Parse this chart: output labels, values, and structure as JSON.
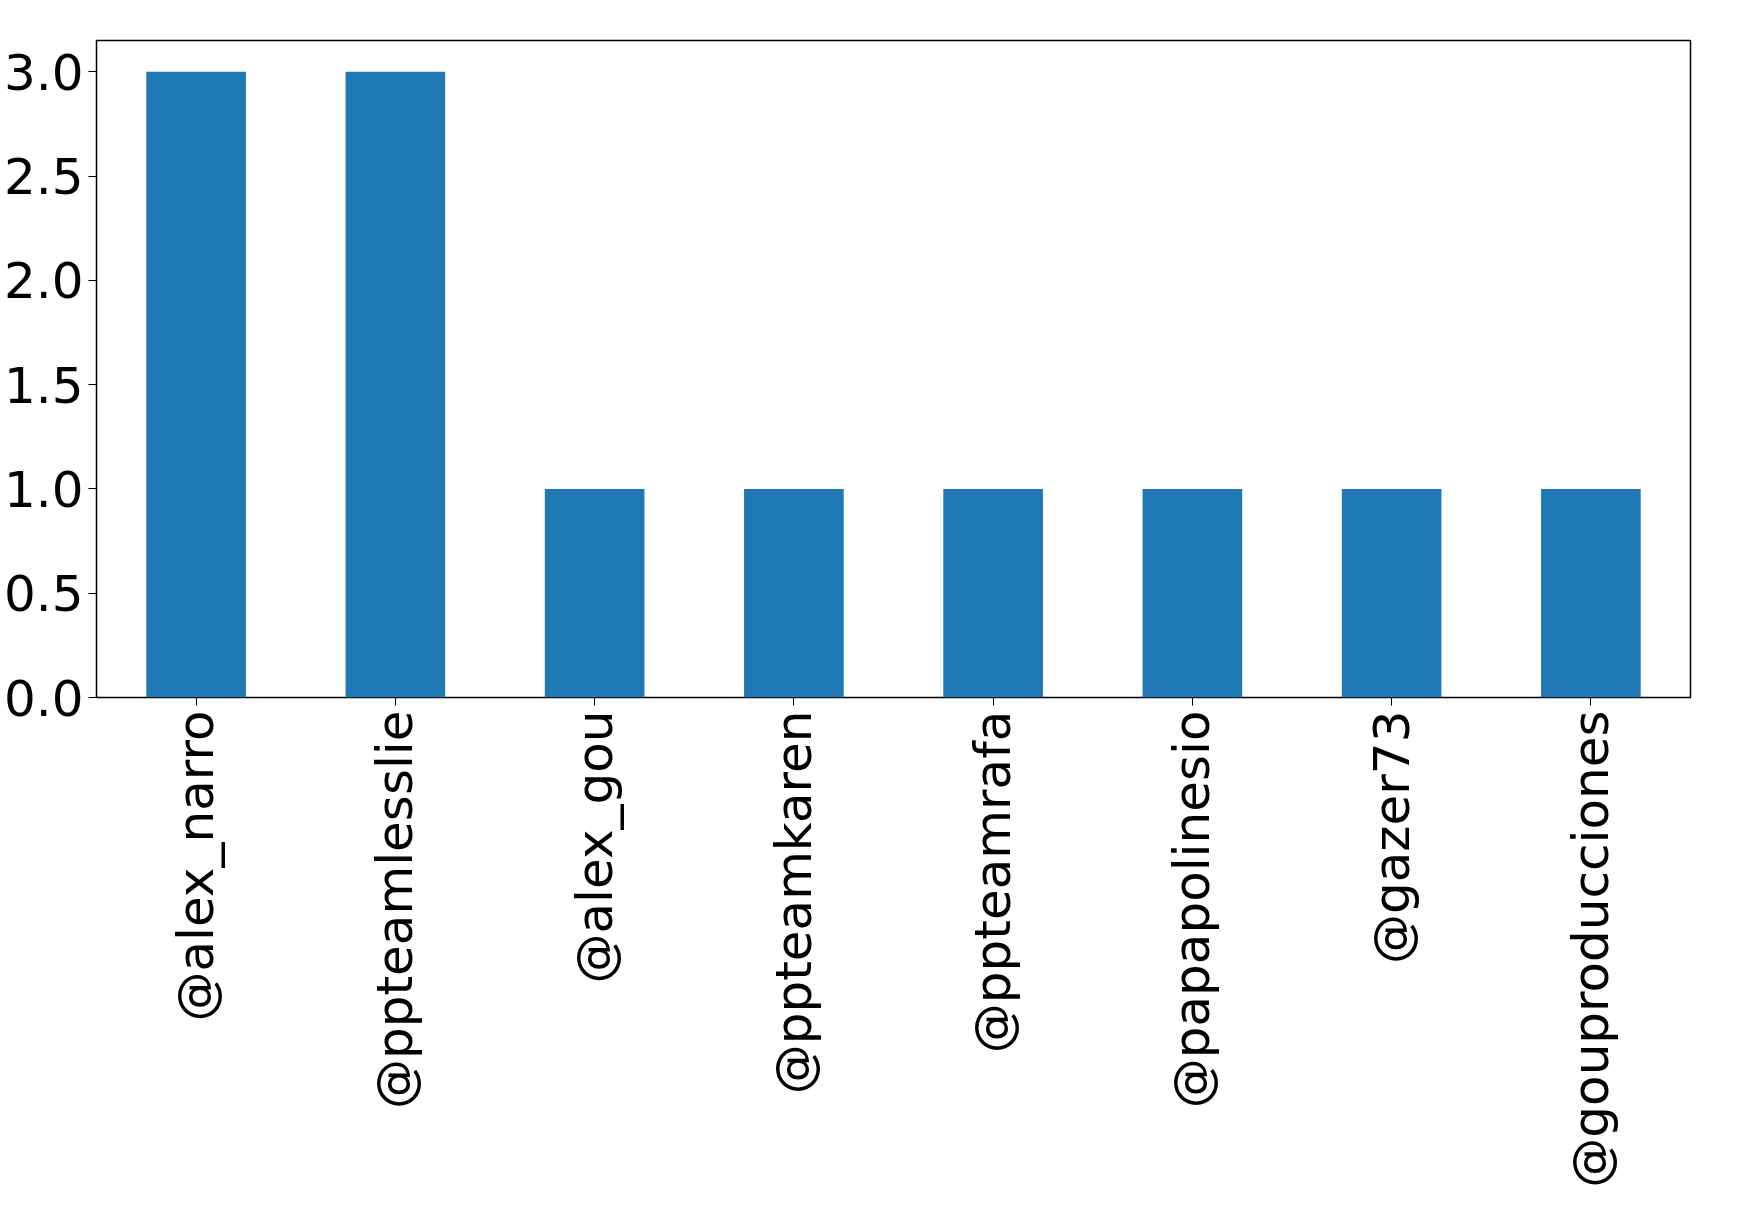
{
  "chart_data": {
    "type": "bar",
    "categories": [
      "@alex_narro",
      "@ppteamlesslie",
      "@alex_gou",
      "@ppteamkaren",
      "@ppteamrafa",
      "@papapolinesio",
      "@gazer73",
      "@gouproducciones"
    ],
    "values": [
      3,
      3,
      1,
      1,
      1,
      1,
      1,
      1
    ],
    "color": "#1f77b4",
    "ylim": [
      0,
      3.15
    ],
    "yticks": [
      {
        "value": 0,
        "label": "0.0"
      },
      {
        "value": 0.5,
        "label": "0.5"
      },
      {
        "value": 1,
        "label": "1.0"
      },
      {
        "value": 1.5,
        "label": "1.5"
      },
      {
        "value": 2,
        "label": "2.0"
      },
      {
        "value": 2.5,
        "label": "2.5"
      },
      {
        "value": 3,
        "label": "3.0"
      }
    ],
    "grid": false
  }
}
